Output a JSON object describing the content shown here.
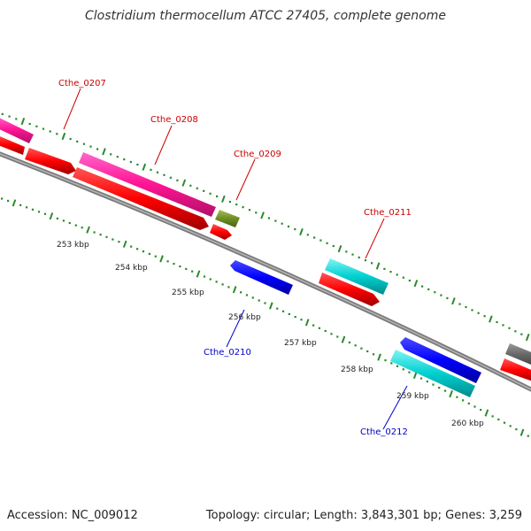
{
  "title": "Clostridium thermocellum ATCC 27405, complete genome",
  "footer": {
    "accession": "Accession: NC_009012",
    "topology": "Topology: circular; Length: 3,843,301 bp; Genes: 3,259"
  },
  "colors": {
    "backbone": "#808080",
    "tick": "#2a8a2a",
    "forward_label": "#cc0000",
    "reverse_label": "#0000cc"
  },
  "scale_labels": [
    "253 kbp",
    "254 kbp",
    "255 kbp",
    "256 kbp",
    "257 kbp",
    "258 kbp",
    "259 kbp",
    "260 kbp"
  ],
  "gene_labels": [
    {
      "text": "Cthe_0207",
      "strand": "forward"
    },
    {
      "text": "Cthe_0208",
      "strand": "forward"
    },
    {
      "text": "Cthe_0209",
      "strand": "forward"
    },
    {
      "text": "Cthe_0211",
      "strand": "forward"
    },
    {
      "text": "Cthe_0210",
      "strand": "reverse"
    },
    {
      "text": "Cthe_0212",
      "strand": "reverse"
    }
  ]
}
